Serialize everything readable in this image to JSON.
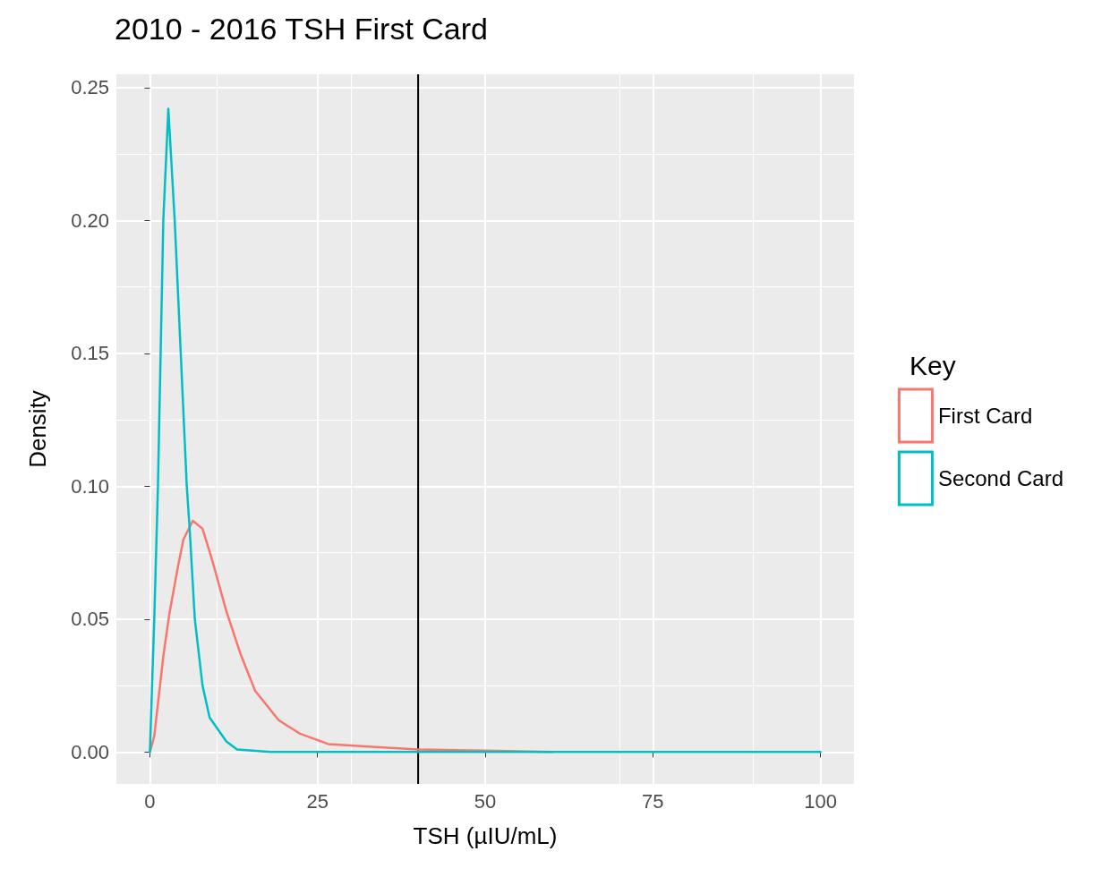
{
  "chart_data": {
    "type": "line",
    "title": "2010 - 2016 TSH First Card",
    "xlabel": "TSH (µIU/mL)",
    "ylabel": "Density",
    "legend_title": "Key",
    "legend": "right",
    "grid": true,
    "marker": "none",
    "line_style": "solid",
    "xlim": [
      -5,
      105
    ],
    "xticks": [
      0,
      25,
      50,
      75,
      100
    ],
    "ylim": [
      -0.012,
      0.255
    ],
    "yticks": [
      {
        "value": 0,
        "label": "0.00"
      },
      {
        "value": 0.05,
        "label": "0.05"
      },
      {
        "value": 0.1,
        "label": "0.10"
      },
      {
        "value": 0.15,
        "label": "0.15"
      },
      {
        "value": 0.2,
        "label": "0.20"
      },
      {
        "value": 0.25,
        "label": "0.25"
      }
    ],
    "ref_lines": [
      {
        "axis": "x",
        "value": 40,
        "color": "#000000"
      }
    ],
    "series": [
      {
        "name": "First Card",
        "color": "#f8766d",
        "x": [
          0,
          0.65,
          2.0,
          2.9,
          4.2,
          5.0,
          6.4,
          7.85,
          9.2,
          11.4,
          13.5,
          15.7,
          19.2,
          22.3,
          26.6,
          33.1,
          40,
          50,
          60
        ],
        "values": [
          0,
          0.006,
          0.036,
          0.052,
          0.07,
          0.08,
          0.087,
          0.084,
          0.073,
          0.053,
          0.037,
          0.023,
          0.012,
          0.007,
          0.003,
          0.002,
          0.001,
          0.0005,
          0
        ]
      },
      {
        "name": "Second Card",
        "color": "#00bfc4",
        "x": [
          0,
          0.65,
          1.2,
          1.6,
          2.0,
          2.75,
          3.7,
          4.6,
          5.5,
          5.9,
          6.7,
          7.85,
          8.9,
          11.4,
          13,
          18,
          50,
          100
        ],
        "values": [
          0,
          0.05,
          0.1,
          0.15,
          0.2,
          0.242,
          0.2,
          0.15,
          0.1,
          0.085,
          0.05,
          0.025,
          0.013,
          0.004,
          0.001,
          0,
          0,
          0
        ]
      }
    ]
  }
}
